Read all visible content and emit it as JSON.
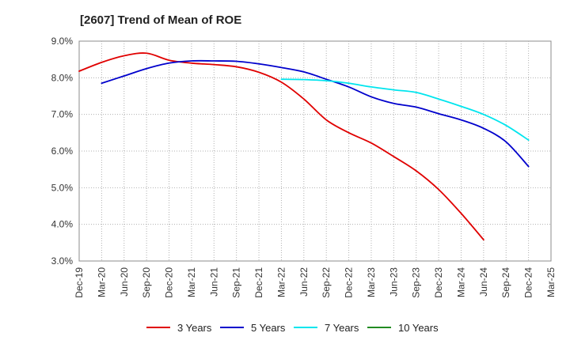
{
  "chart_data": {
    "type": "line",
    "title": "[2607]  Trend of Mean of ROE",
    "xlabel": "",
    "ylabel": "",
    "ylim": [
      3.0,
      9.0
    ],
    "y_ticks": [
      "3.0%",
      "4.0%",
      "5.0%",
      "6.0%",
      "7.0%",
      "8.0%",
      "9.0%"
    ],
    "x_ticks": [
      "Dec-19",
      "Mar-20",
      "Jun-20",
      "Sep-20",
      "Dec-20",
      "Mar-21",
      "Jun-21",
      "Sep-21",
      "Dec-21",
      "Mar-22",
      "Jun-22",
      "Sep-22",
      "Dec-22",
      "Mar-23",
      "Jun-23",
      "Sep-23",
      "Dec-23",
      "Mar-24",
      "Jun-24",
      "Sep-24",
      "Dec-24",
      "Mar-25"
    ],
    "grid": true,
    "legend_position": "bottom",
    "series": [
      {
        "name": "3 Years",
        "color": "#e00000",
        "values": [
          8.18,
          8.42,
          8.6,
          8.67,
          8.48,
          8.4,
          8.36,
          8.3,
          8.15,
          7.88,
          7.42,
          6.85,
          6.5,
          6.22,
          5.85,
          5.46,
          4.95,
          4.3,
          3.58
        ]
      },
      {
        "name": "5 Years",
        "color": "#0000cc",
        "values": [
          null,
          7.85,
          8.05,
          8.25,
          8.4,
          8.46,
          8.46,
          8.45,
          8.38,
          8.28,
          8.16,
          7.96,
          7.75,
          7.48,
          7.3,
          7.2,
          7.02,
          6.85,
          6.62,
          6.25,
          5.58
        ]
      },
      {
        "name": "7 Years",
        "color": "#00e5ee",
        "values": [
          null,
          null,
          null,
          null,
          null,
          null,
          null,
          null,
          null,
          7.96,
          7.95,
          7.92,
          7.85,
          7.75,
          7.67,
          7.6,
          7.42,
          7.22,
          7.0,
          6.7,
          6.3
        ]
      },
      {
        "name": "10 Years",
        "color": "#228b22",
        "values": []
      }
    ]
  }
}
